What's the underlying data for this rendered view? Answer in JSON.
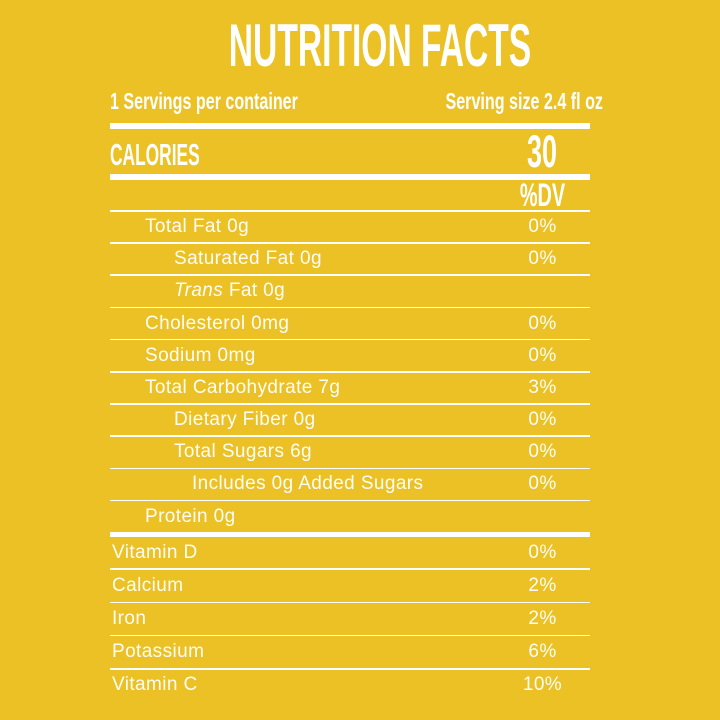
{
  "colors": {
    "bg": "#EBC125",
    "fg": "#FFFFFF"
  },
  "header": {
    "title": "NUTRITION FACTS",
    "servings_per_container": "1 Servings per container",
    "serving_size": "Serving size 2.4 fl oz"
  },
  "calories": {
    "label": "CALORIES",
    "value": "30"
  },
  "dv_header": "%DV",
  "nutrients": [
    {
      "label": "Total Fat 0g",
      "dv": "0%"
    },
    {
      "label": "Saturated Fat 0g",
      "dv": "0%"
    },
    {
      "italic": "Trans",
      "rest": " Fat 0g",
      "dv": ""
    },
    {
      "label": "Cholesterol 0mg",
      "dv": "0%"
    },
    {
      "label": "Sodium 0mg",
      "dv": "0%"
    },
    {
      "label": "Total Carbohydrate 7g",
      "dv": "3%"
    },
    {
      "label": "Dietary Fiber 0g",
      "dv": "0%"
    },
    {
      "label": "Total Sugars  6g",
      "dv": "0%"
    },
    {
      "label": "Includes 0g Added Sugars",
      "dv": "0%"
    },
    {
      "label": "Protein 0g",
      "dv": ""
    }
  ],
  "vitamins": [
    {
      "label": "Vitamin D",
      "dv": "0%"
    },
    {
      "label": "Calcium",
      "dv": "2%"
    },
    {
      "label": "Iron",
      "dv": "2%"
    },
    {
      "label": "Potassium",
      "dv": "6%"
    },
    {
      "label": "Vitamin C",
      "dv": "10%"
    }
  ]
}
